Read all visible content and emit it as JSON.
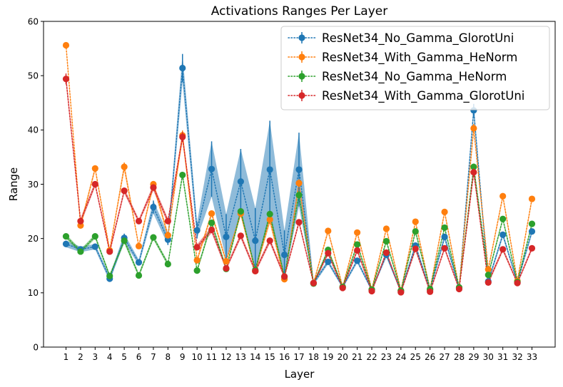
{
  "chart_data": {
    "type": "line",
    "title": "Activations Ranges Per Layer",
    "xlabel": "Layer",
    "ylabel": "Range",
    "ylim": [
      0,
      60
    ],
    "yticks": [
      0,
      10,
      20,
      30,
      40,
      50,
      60
    ],
    "categories": [
      "1",
      "2",
      "3",
      "4",
      "5",
      "6",
      "7",
      "8",
      "9",
      "10",
      "11",
      "12",
      "13",
      "14",
      "15",
      "16",
      "17",
      "18",
      "19",
      "20",
      "21",
      "22",
      "23",
      "24",
      "25",
      "26",
      "27",
      "28",
      "29",
      "30",
      "31",
      "32",
      "33"
    ],
    "legend_position": "top-right",
    "series": [
      {
        "name": "ResNet34_No_Gamma_GlorotUni",
        "color": "#1f77b4",
        "values": [
          19.0,
          18.0,
          18.5,
          12.6,
          20.1,
          15.6,
          25.8,
          19.8,
          51.4,
          21.5,
          32.8,
          20.3,
          30.5,
          19.6,
          32.7,
          17.0,
          32.7,
          11.8,
          15.7,
          11.1,
          15.9,
          10.5,
          17.0,
          10.3,
          18.7,
          10.5,
          20.3,
          10.8,
          43.6,
          12.1,
          20.7,
          11.9,
          21.3
        ],
        "errors": [
          0.6,
          0.5,
          0.5,
          0.5,
          0.8,
          0.5,
          1.2,
          1.0,
          2.6,
          1.5,
          5.1,
          4.2,
          6.0,
          6.0,
          9.0,
          4.5,
          6.8,
          0.4,
          0.4,
          0.3,
          0.4,
          0.3,
          0.5,
          0.3,
          0.5,
          0.3,
          0.6,
          0.3,
          1.2,
          0.4,
          0.5,
          0.3,
          0.5
        ]
      },
      {
        "name": "ResNet34_With_Gamma_HeNorm",
        "color": "#ff7f0e",
        "values": [
          55.6,
          22.4,
          32.9,
          17.8,
          33.2,
          18.6,
          30.0,
          20.6,
          39.0,
          16.0,
          24.6,
          15.8,
          24.6,
          14.0,
          23.5,
          12.5,
          30.2,
          11.8,
          21.4,
          11.1,
          21.1,
          10.6,
          21.8,
          10.4,
          23.1,
          10.6,
          24.9,
          10.9,
          40.3,
          14.3,
          27.8,
          12.2,
          27.3
        ],
        "errors": [
          0.5,
          0.5,
          0.5,
          0.4,
          0.8,
          0.4,
          0.6,
          0.5,
          0.9,
          0.4,
          0.5,
          0.4,
          0.5,
          0.3,
          0.8,
          0.4,
          0.7,
          0.3,
          0.4,
          0.3,
          0.4,
          0.3,
          0.4,
          0.3,
          0.4,
          0.3,
          0.5,
          0.3,
          0.8,
          0.4,
          0.5,
          0.3,
          0.5
        ]
      },
      {
        "name": "ResNet34_No_Gamma_HeNorm",
        "color": "#2ca02c",
        "values": [
          20.4,
          17.6,
          20.4,
          13.1,
          19.6,
          13.2,
          20.2,
          15.3,
          31.7,
          14.1,
          22.9,
          14.4,
          25.0,
          14.2,
          24.5,
          13.0,
          28.0,
          11.7,
          17.9,
          11.1,
          18.9,
          10.6,
          19.5,
          10.4,
          21.3,
          10.7,
          22.0,
          11.0,
          33.2,
          13.3,
          23.6,
          12.0,
          22.7
        ],
        "errors": [
          0.4,
          0.4,
          0.4,
          0.4,
          0.5,
          0.4,
          0.4,
          0.4,
          0.6,
          0.4,
          0.5,
          0.4,
          0.6,
          0.4,
          0.6,
          0.4,
          0.7,
          0.3,
          0.4,
          0.3,
          0.4,
          0.3,
          0.4,
          0.3,
          0.4,
          0.3,
          0.4,
          0.3,
          0.6,
          0.4,
          0.4,
          0.3,
          0.4
        ]
      },
      {
        "name": "ResNet34_With_Gamma_GlorotUni",
        "color": "#d62728",
        "values": [
          49.4,
          23.2,
          30.0,
          17.6,
          28.8,
          23.2,
          29.4,
          23.2,
          38.7,
          18.4,
          21.6,
          14.5,
          20.5,
          14.0,
          19.6,
          13.0,
          23.0,
          11.8,
          17.3,
          10.9,
          17.8,
          10.3,
          17.4,
          10.1,
          18.1,
          10.2,
          18.2,
          10.7,
          32.2,
          11.9,
          18.0,
          11.8,
          18.2
        ],
        "errors": [
          1.0,
          0.6,
          0.5,
          0.5,
          0.5,
          0.4,
          0.6,
          0.5,
          0.9,
          0.5,
          0.6,
          0.4,
          0.5,
          0.4,
          0.5,
          0.4,
          0.5,
          0.3,
          0.4,
          0.3,
          0.4,
          0.3,
          0.4,
          0.3,
          0.4,
          0.3,
          0.4,
          0.3,
          0.7,
          0.4,
          0.4,
          0.3,
          0.4
        ]
      }
    ]
  }
}
